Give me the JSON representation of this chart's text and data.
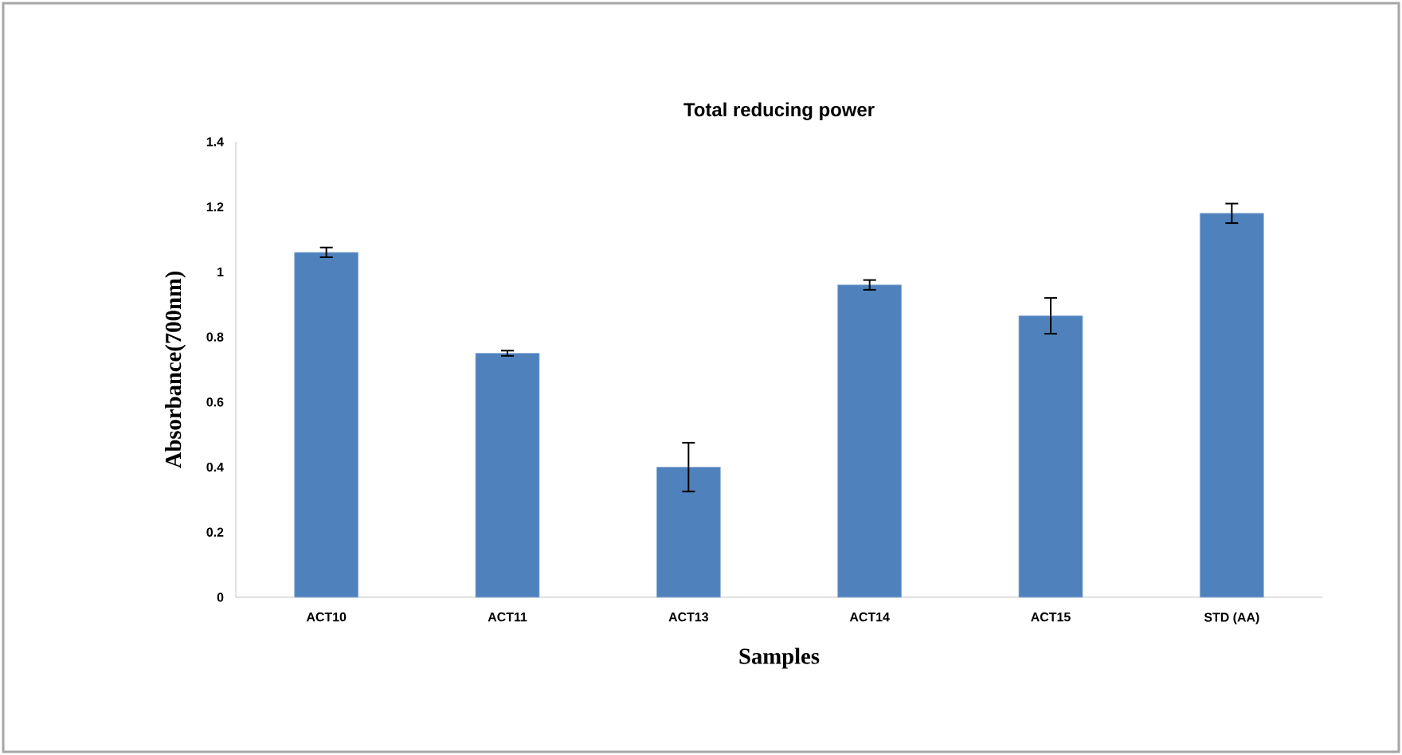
{
  "chart_data": {
    "type": "bar",
    "title": "Total reducing power",
    "xlabel": "Samples",
    "ylabel": "Absorbance(700nm)",
    "categories": [
      "ACT10",
      "ACT11",
      "ACT13",
      "ACT14",
      "ACT15",
      "STD (AA)"
    ],
    "values": [
      1.06,
      0.75,
      0.4,
      0.96,
      0.865,
      1.18
    ],
    "errors": [
      0.015,
      0.008,
      0.075,
      0.015,
      0.055,
      0.03
    ],
    "color": "#4f81bd",
    "ylim": [
      0,
      1.4
    ],
    "yticks": [
      0,
      0.2,
      0.4,
      0.6,
      0.8,
      1,
      1.2,
      1.4
    ],
    "grid": false
  }
}
